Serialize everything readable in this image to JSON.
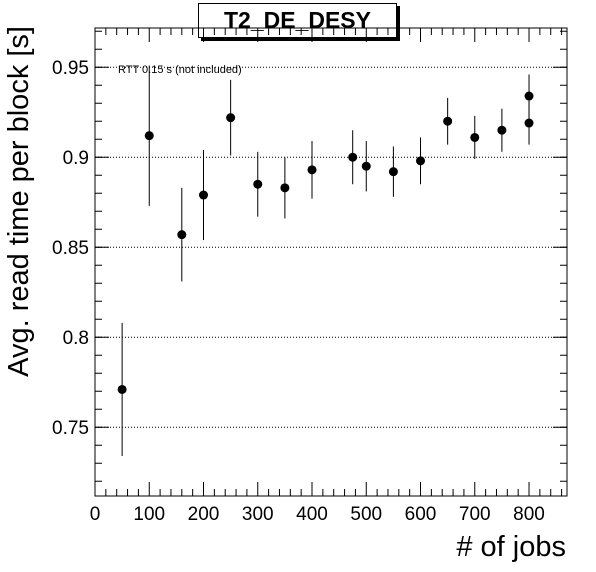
{
  "chart_data": {
    "type": "scatter",
    "title": "T2_DE_DESY",
    "xlabel": "# of jobs",
    "ylabel": "Avg. read time per block [s]",
    "annotation": "RTT 0.15 s (not included)",
    "xlim": [
      0,
      870
    ],
    "ylim": [
      0.7118,
      0.9718
    ],
    "x_ticks": [
      0,
      100,
      200,
      300,
      400,
      500,
      600,
      700,
      800
    ],
    "y_ticks": [
      0.75,
      0.8,
      0.85,
      0.9,
      0.95
    ],
    "y_tick_labels": [
      "0.75",
      "0.8",
      "0.85",
      "0.9",
      "0.95"
    ],
    "grid": "horizontal dotted",
    "series": [
      {
        "x": [
          50,
          100,
          160,
          200,
          250,
          300,
          350,
          400,
          475,
          500,
          550,
          600,
          650,
          700,
          750,
          800,
          800
        ],
        "y": [
          0.771,
          0.912,
          0.857,
          0.879,
          0.922,
          0.885,
          0.883,
          0.893,
          0.9,
          0.895,
          0.892,
          0.898,
          0.92,
          0.911,
          0.915,
          0.919,
          0.934
        ],
        "err": [
          0.037,
          0.039,
          0.026,
          0.025,
          0.021,
          0.018,
          0.017,
          0.016,
          0.015,
          0.014,
          0.014,
          0.013,
          0.013,
          0.012,
          0.012,
          0.012,
          0.012
        ]
      }
    ],
    "colors": {
      "marker": "#000000",
      "grid": "#000000",
      "frame": "#000000"
    }
  }
}
